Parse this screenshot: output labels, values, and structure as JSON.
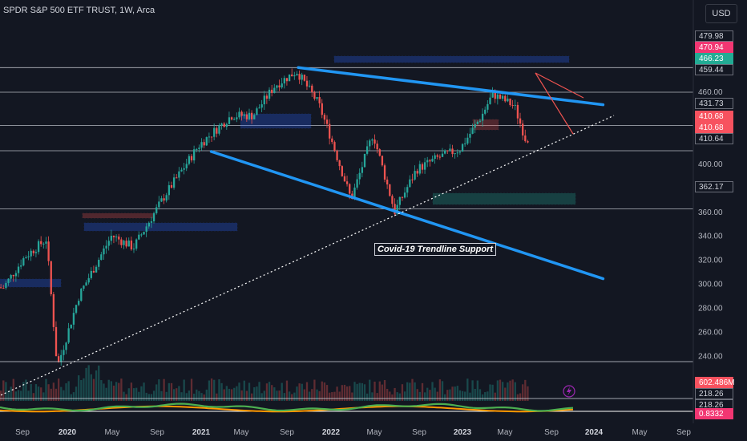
{
  "title": "SPDR S&P 500 ETF TRUST, 1W, Arca",
  "currency": "USD",
  "annotation": "Covid-19 Trendline Support",
  "colors": {
    "background": "#131722",
    "up": "#26a69a",
    "down": "#ef5350",
    "channel": "#2196f3",
    "grid": "#d1d4dc"
  },
  "chart_data": {
    "type": "line",
    "title": "SPDR S&P 500 ETF TRUST, 1W, Arca",
    "xlabel": "",
    "ylabel": "",
    "ylim": [
      215,
      490
    ],
    "x_ticks": [
      "Sep",
      "2020",
      "May",
      "Sep",
      "2021",
      "May",
      "Sep",
      "2022",
      "May",
      "Sep",
      "2023",
      "May",
      "Sep",
      "2024",
      "May",
      "Sep"
    ],
    "y_ticks": [
      240,
      260,
      280,
      300,
      320,
      340,
      360,
      380,
      400,
      420,
      440,
      460,
      480
    ],
    "price_labels": [
      {
        "text": "479.98",
        "style": "plain"
      },
      {
        "text": "470.94",
        "style": "red"
      },
      {
        "text": "466.23",
        "style": "green"
      },
      {
        "text": "459.44",
        "style": "plain"
      },
      {
        "text": "431.73",
        "style": "plain"
      },
      {
        "text": "410.68",
        "style": "pink"
      },
      {
        "text": "410.68",
        "style": "pink"
      },
      {
        "text": "410.64",
        "style": "plain"
      },
      {
        "text": "362.17",
        "style": "plain"
      },
      {
        "text": "602.486M",
        "style": "pink"
      },
      {
        "text": "218.26",
        "style": "plain"
      },
      {
        "text": "218.26",
        "style": "plain"
      },
      {
        "text": "0.8332",
        "style": "red"
      }
    ],
    "horizontal_levels": [
      479.98,
      459.44,
      431.73,
      410.64,
      362.17
    ],
    "price_series": [
      {
        "x": "2019-08",
        "y": 300
      },
      {
        "x": "2019-10",
        "y": 296
      },
      {
        "x": "2019-12",
        "y": 322
      },
      {
        "x": "2020-02",
        "y": 337
      },
      {
        "x": "2020-03",
        "y": 230
      },
      {
        "x": "2020-05",
        "y": 290
      },
      {
        "x": "2020-08",
        "y": 340
      },
      {
        "x": "2020-10",
        "y": 330
      },
      {
        "x": "2021-01",
        "y": 375
      },
      {
        "x": "2021-04",
        "y": 415
      },
      {
        "x": "2021-07",
        "y": 440
      },
      {
        "x": "2021-09",
        "y": 440
      },
      {
        "x": "2021-11",
        "y": 465
      },
      {
        "x": "2022-01",
        "y": 477
      },
      {
        "x": "2022-03",
        "y": 450
      },
      {
        "x": "2022-04",
        "y": 425
      },
      {
        "x": "2022-06",
        "y": 370
      },
      {
        "x": "2022-08",
        "y": 425
      },
      {
        "x": "2022-10",
        "y": 360
      },
      {
        "x": "2022-12",
        "y": 395
      },
      {
        "x": "2023-02",
        "y": 405
      },
      {
        "x": "2023-04",
        "y": 412
      },
      {
        "x": "2023-06",
        "y": 440
      },
      {
        "x": "2023-07",
        "y": 458
      },
      {
        "x": "2023-09",
        "y": 448
      },
      {
        "x": "2023-10",
        "y": 421
      }
    ],
    "channel_upper": [
      {
        "x": "2022-01",
        "y": 480
      },
      {
        "x": "2024-05",
        "y": 449
      }
    ],
    "channel_lower": [
      {
        "x": "2021-05",
        "y": 410
      },
      {
        "x": "2024-05",
        "y": 304
      }
    ],
    "support_trendline": [
      {
        "x": "2019-08",
        "y": 200
      },
      {
        "x": "2024-06",
        "y": 440
      }
    ]
  }
}
